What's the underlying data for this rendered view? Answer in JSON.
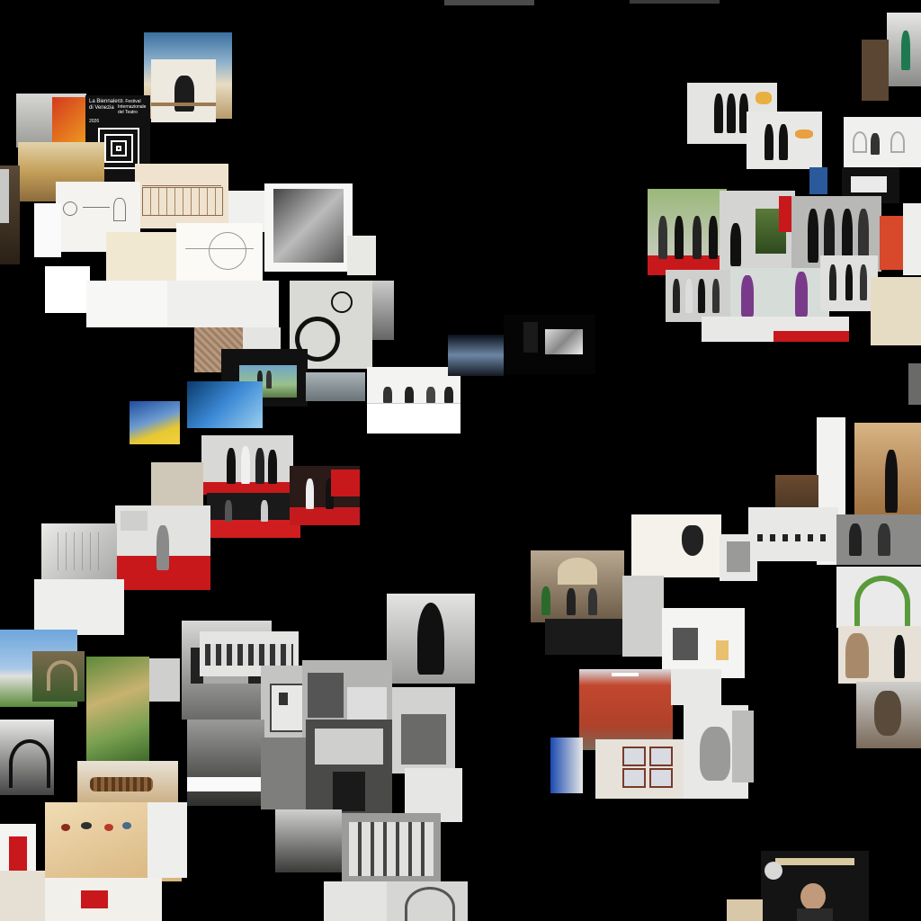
{
  "view": {
    "background": "#000000",
    "description_free": true
  },
  "poster": {
    "line1": "La Biennale",
    "line2": "di Venezia",
    "line3": "69. Festival",
    "line4": "Internazionale",
    "line5": "del Teatro",
    "line6": "2026"
  },
  "colors": {
    "red_carpet": "#c8181c",
    "paper": "#f2f0ea",
    "gallery_red": "#c2472e",
    "wall_white": "#e8e8e6",
    "sepia": "#c9a27a",
    "bw_gray": "#8a8a8a"
  },
  "clusters": [
    "archive-drawings-cluster",
    "red-carpet-cluster",
    "pavilion-photos-cluster",
    "exhibition-rooms-cluster",
    "press-cluster"
  ]
}
